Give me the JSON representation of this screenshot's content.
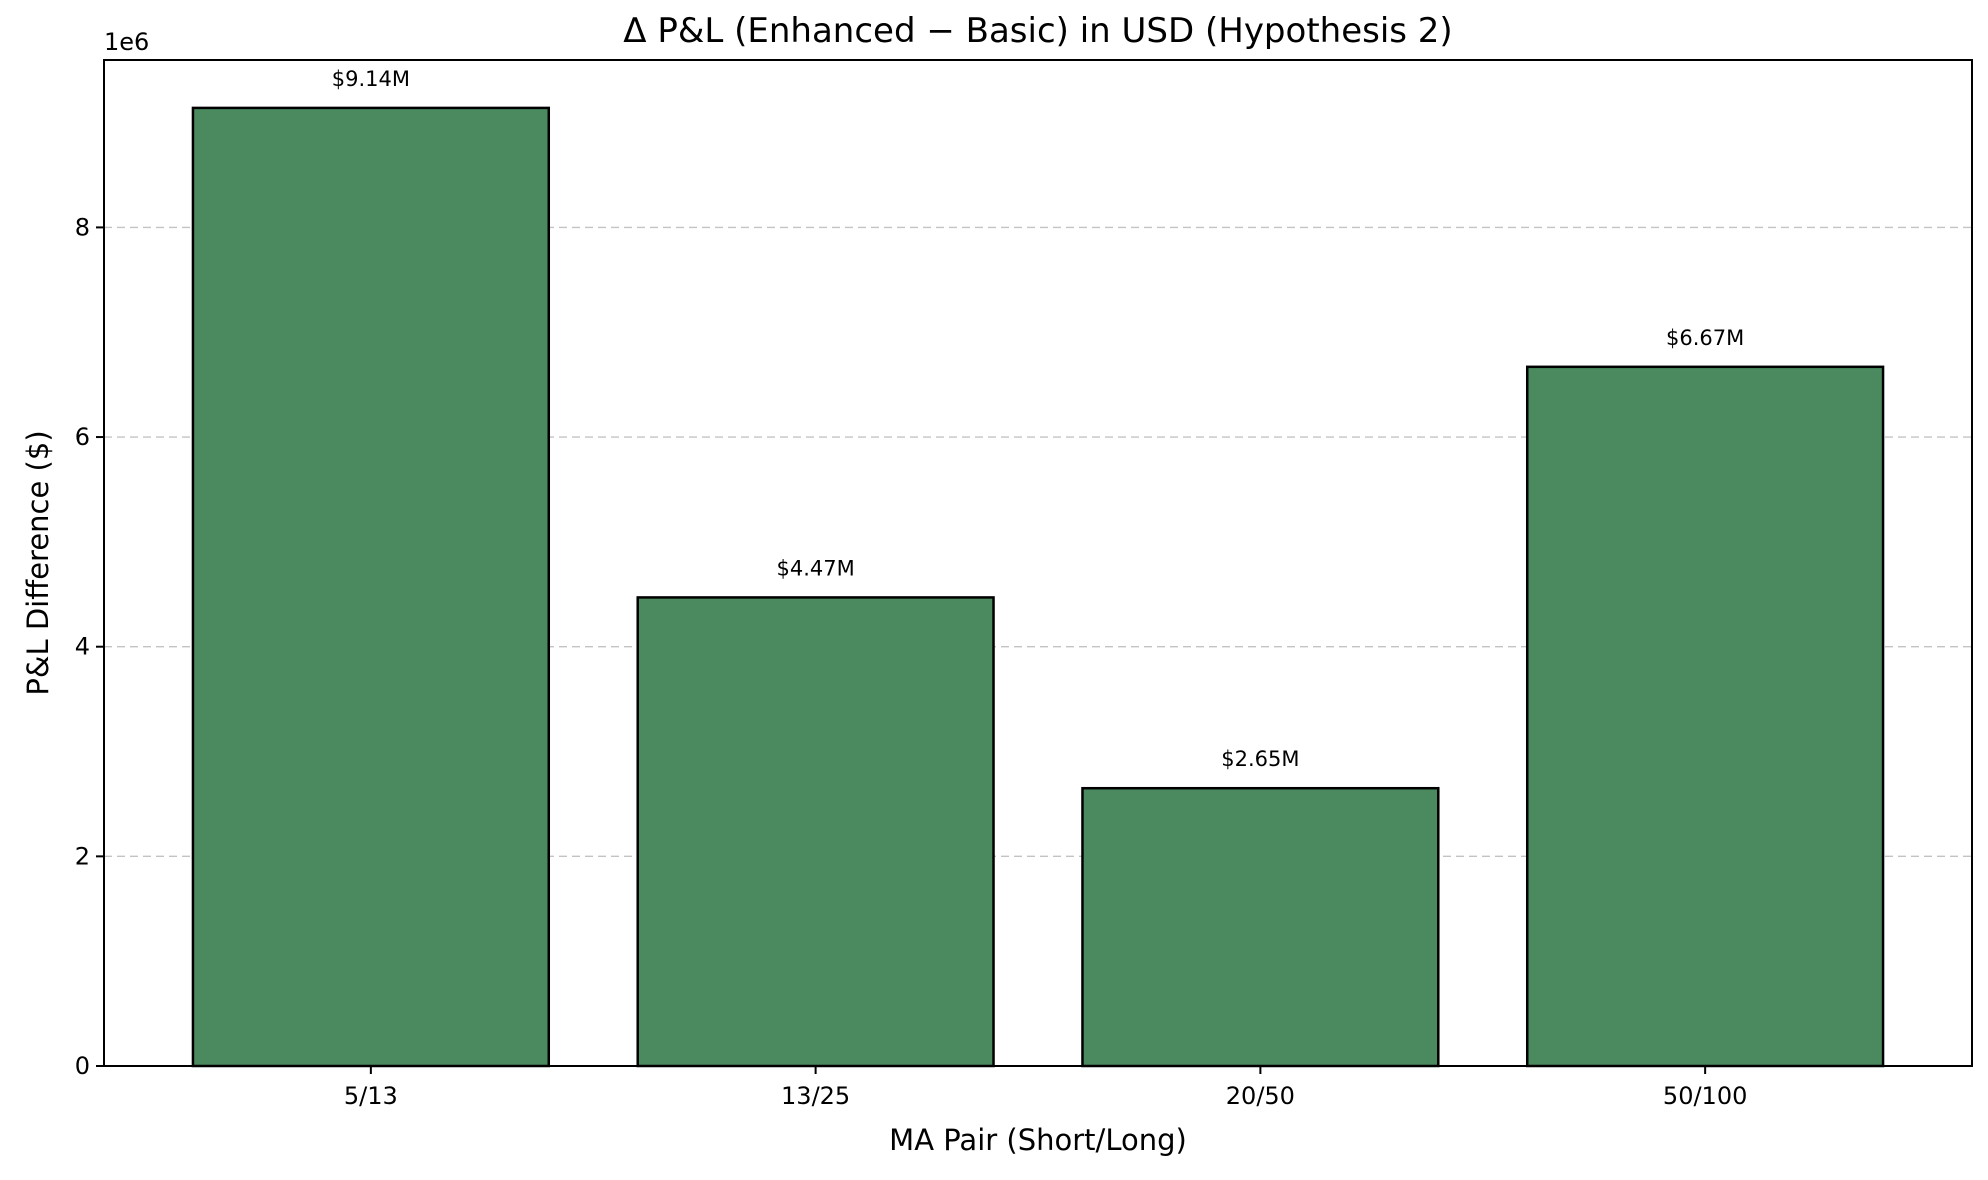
{
  "chart_data": {
    "type": "bar",
    "title": "Δ P&L (Enhanced − Basic) in USD (Hypothesis 2)",
    "xlabel": "MA Pair (Short/Long)",
    "ylabel": "P&L Difference ($)",
    "y_offset_text": "1e6",
    "categories": [
      "5/13",
      "13/25",
      "20/50",
      "50/100"
    ],
    "values": [
      9140000,
      4470000,
      2650000,
      6670000
    ],
    "data_labels": [
      "$9.14M",
      "$4.47M",
      "$2.65M",
      "$6.67M"
    ],
    "ylim": [
      0,
      9597000
    ],
    "yticks": [
      0,
      2000000,
      4000000,
      6000000,
      8000000
    ],
    "ytick_labels": [
      "0",
      "2",
      "4",
      "6",
      "8"
    ],
    "grid": "y-dashed",
    "bar_color": "#4a8a5e",
    "edge_color": "#000000"
  }
}
